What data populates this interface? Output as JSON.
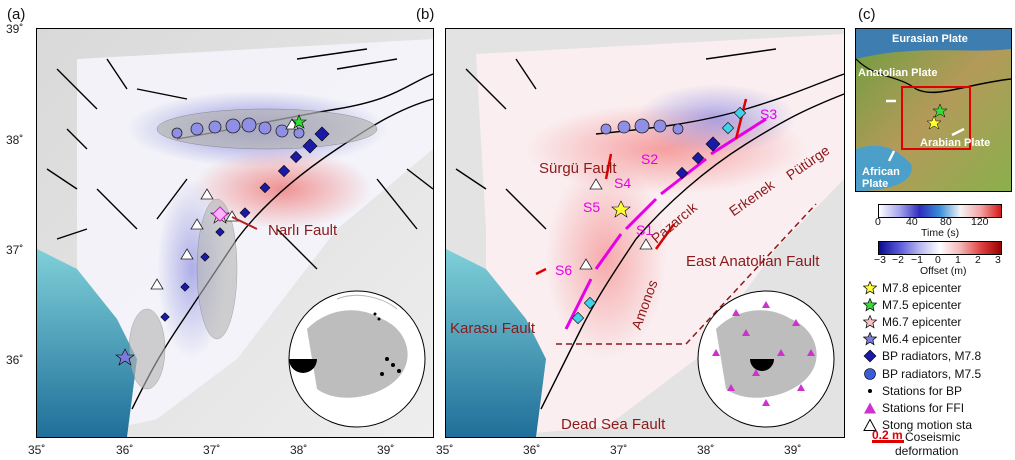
{
  "panels": {
    "a": "(a)",
    "b": "(b)",
    "c": "(c)"
  },
  "x_ticks": [
    "35˚",
    "36˚",
    "37˚",
    "38˚",
    "39˚"
  ],
  "y_ticks": [
    "39˚",
    "38˚",
    "37˚",
    "36˚"
  ],
  "panel_a": {
    "fault_label": "Narlı Fault"
  },
  "panel_b": {
    "labels": {
      "surgu": "Sürgü Fault",
      "pazarcik": "Pazarcık",
      "erkenek": "Erkenek",
      "puturge": "Pütürge",
      "eaf": "East Anatolian Fault",
      "amanos": "Amonos",
      "karasu": "Karasu Fault",
      "dsf": "Dead Sea Fault"
    },
    "segments": [
      "S1",
      "S2",
      "S3",
      "S4",
      "S5",
      "S6"
    ]
  },
  "panel_c": {
    "plates": {
      "eurasian": "Eurasian Plate",
      "anatolian": "Anatolian Plate",
      "arabian": "Arabian Plate",
      "african": "African Plate"
    }
  },
  "colorbars": {
    "time": {
      "ticks": [
        "0",
        "40",
        "80",
        "120"
      ],
      "label": "Time (s)",
      "range": [
        0,
        140
      ]
    },
    "offset": {
      "ticks": [
        "−3",
        "−2",
        "−1",
        "0",
        "1",
        "2",
        "3"
      ],
      "label": "Offset (m)",
      "range": [
        -3,
        3
      ]
    }
  },
  "legend": [
    {
      "name": "legend-m78-epicenter",
      "icon": "star-icon",
      "color": "#ffff33",
      "label": "M7.8 epicenter"
    },
    {
      "name": "legend-m75-epicenter",
      "icon": "star-icon",
      "color": "#33dd33",
      "label": "M7.5 epicenter"
    },
    {
      "name": "legend-m67-epicenter",
      "icon": "star-icon",
      "color": "#f4c2c2",
      "label": "M6.7 epicenter"
    },
    {
      "name": "legend-m64-epicenter",
      "icon": "star-icon",
      "color": "#7b7bdd",
      "label": "M6.4 epicenter"
    },
    {
      "name": "legend-bp-m78",
      "icon": "diamond-icon",
      "color": "#1a1aa6",
      "label": "BP radiators, M7.8"
    },
    {
      "name": "legend-bp-m75",
      "icon": "circle-icon",
      "color": "#3b5bdb",
      "label": "BP radiators, M7.5"
    },
    {
      "name": "legend-stations-bp",
      "icon": "dot-icon",
      "color": "#000000",
      "label": "Stations for BP"
    },
    {
      "name": "legend-stations-ffi",
      "icon": "triangle-icon",
      "color": "#cc33cc",
      "label": "Stations for FFI"
    },
    {
      "name": "legend-strong-motion",
      "icon": "triangle-outline-icon",
      "color": "#ffffff",
      "label": "Stong motion sta"
    }
  ],
  "scale": {
    "value": "0.2 m",
    "label_line1": "Coseismic",
    "label_line2": "deformation",
    "color": "#e00000"
  }
}
